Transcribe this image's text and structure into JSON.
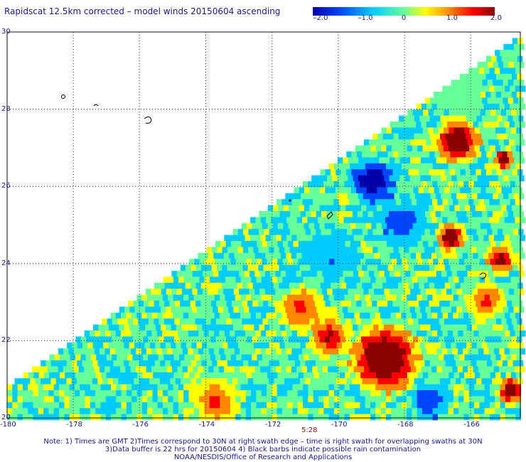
{
  "title": "Rapidscat 12.5km corrected – model winds 20150604 ascending",
  "colorbar": {
    "labels": [
      "–2.0",
      "–1.0",
      "0",
      "1.0",
      "2.0"
    ],
    "values": [
      -2.0,
      -1.0,
      0,
      1.0,
      2.0
    ],
    "colors": [
      "#0000aa",
      "#0044ff",
      "#00ccff",
      "#66ff99",
      "#ffff00",
      "#ff8800",
      "#ff0000",
      "#8b0000"
    ]
  },
  "axes": {
    "x_ticks": [
      "-180",
      "-178",
      "-176",
      "-174",
      "-172",
      "-170",
      "-168",
      "-166"
    ],
    "y_ticks": [
      "30",
      "28",
      "26",
      "24",
      "22",
      "20"
    ],
    "lon_range": [
      -180,
      -164.5
    ],
    "lat_range": [
      20,
      30
    ]
  },
  "time_label": "5:28",
  "notes": [
    "Note: 1) Times are GMT 2)Times correspond to 30N at right swath edge – time is right swath for overlapping swaths at 30N",
    "3)Data buffer is 22 hrs for 20150604 4) Black barbs indicate possible rain contamination",
    "NOAA/NESDIS/Office of Research and Applications"
  ]
}
